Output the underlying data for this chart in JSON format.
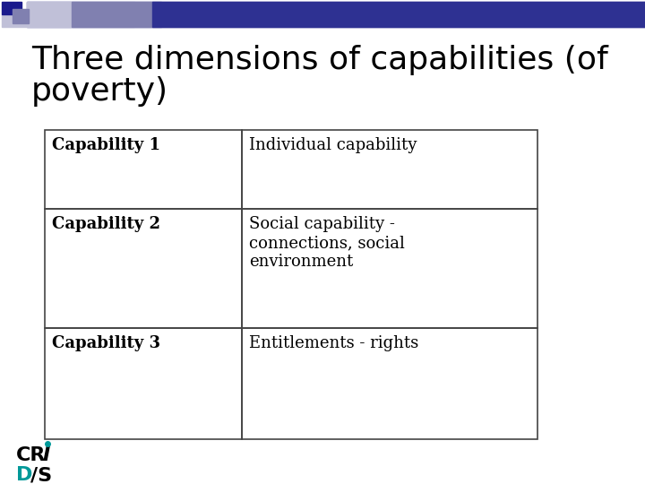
{
  "title_line1": "Three dimensions of capabilities (of",
  "title_line2": "poverty)",
  "title_fontsize": 26,
  "title_color": "#000000",
  "bg_color": "#ffffff",
  "table_rows": [
    [
      "Capability 1",
      "Individual capability"
    ],
    [
      "Capability 2",
      "Social capability -\nconnections, social\nenvironment"
    ],
    [
      "Capability 3",
      "Entitlements - rights"
    ]
  ],
  "bar_dark": "#2e3192",
  "bar_mid": "#8080b0",
  "bar_light": "#c0c0d8",
  "sq_dark": "#1a1a8c",
  "sq_mid": "#8080b0",
  "sq_light": "#c0c0d8",
  "logo_teal": "#009999",
  "logo_black": "#000000"
}
